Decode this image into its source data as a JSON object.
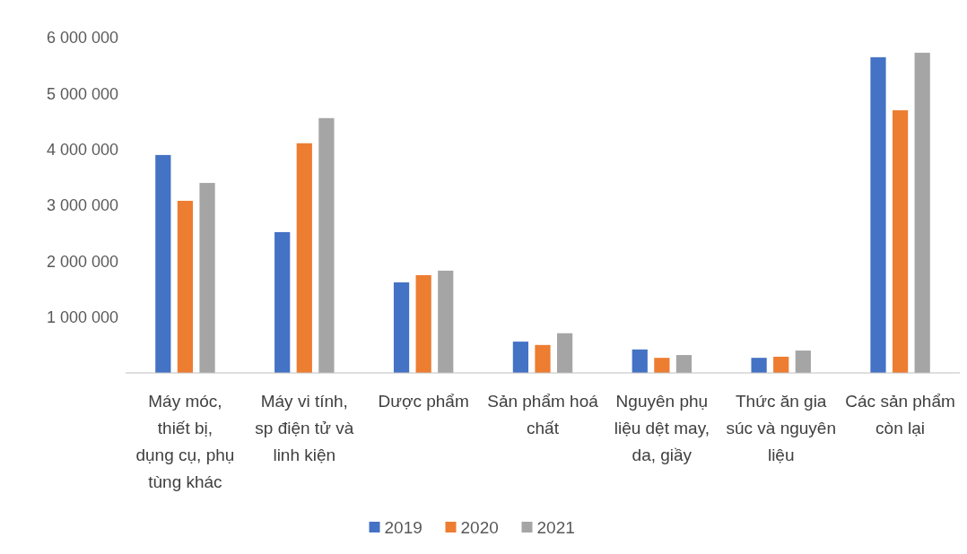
{
  "chart_data": {
    "type": "bar",
    "categories": [
      "Máy móc, thiết bị, dụng cụ, phụ tùng khác",
      "Máy vi tính, sp điện tử và linh kiện",
      "Dược phẩm",
      "Sản phẩm hoá chất",
      "Nguyên phụ liệu dệt may, da, giầy",
      "Thức ăn gia súc và nguyên liệu",
      "Các sản phẩm còn lại"
    ],
    "series": [
      {
        "name": "2019",
        "color": "#4472c4",
        "values": [
          3900000,
          2520000,
          1620000,
          560000,
          420000,
          270000,
          5650000
        ]
      },
      {
        "name": "2020",
        "color": "#ed7d31",
        "values": [
          3080000,
          4110000,
          1750000,
          500000,
          270000,
          290000,
          4700000
        ]
      },
      {
        "name": "2021",
        "color": "#a5a5a5",
        "values": [
          3400000,
          4560000,
          1830000,
          710000,
          320000,
          400000,
          5730000
        ]
      }
    ],
    "ylim": [
      0,
      6000000
    ],
    "yticks": [
      {
        "value": 1000000,
        "label": "1 000 000"
      },
      {
        "value": 2000000,
        "label": "2 000 000"
      },
      {
        "value": 3000000,
        "label": "3 000 000"
      },
      {
        "value": 4000000,
        "label": "4 000 000"
      },
      {
        "value": 5000000,
        "label": "5 000 000"
      },
      {
        "value": 6000000,
        "label": "6 000 000"
      }
    ],
    "grid": false,
    "legend": "bottom"
  }
}
